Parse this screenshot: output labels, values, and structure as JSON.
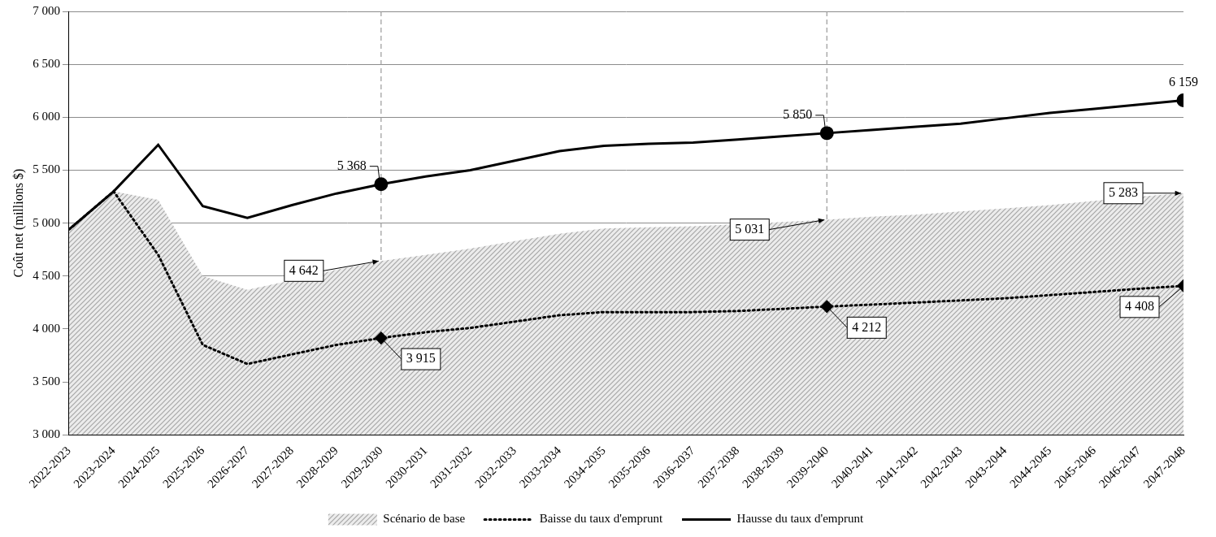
{
  "chart_data": {
    "type": "line",
    "y_label": "Coût net (millions $)",
    "categories": [
      "2022-2023",
      "2023-2024",
      "2024-2025",
      "2025-2026",
      "2026-2027",
      "2027-2028",
      "2028-2029",
      "2029-2030",
      "2030-2031",
      "2031-2032",
      "2032-2033",
      "2033-2034",
      "2034-2035",
      "2035-2036",
      "2036-2037",
      "2037-2038",
      "2038-2039",
      "2039-2040",
      "2040-2041",
      "2041-2042",
      "2042-2043",
      "2043-2044",
      "2044-2045",
      "2045-2046",
      "2046-2047",
      "2047-2048"
    ],
    "series": [
      {
        "name": "Scénario de base",
        "type": "area",
        "color": "#a6a6a6",
        "values": [
          4940,
          5300,
          5220,
          4500,
          4370,
          4460,
          4560,
          4642,
          4700,
          4760,
          4830,
          4900,
          4950,
          4960,
          4970,
          4990,
          5010,
          5031,
          5060,
          5080,
          5110,
          5140,
          5170,
          5210,
          5250,
          5283
        ]
      },
      {
        "name": "Baisse du taux d'emprunt",
        "type": "line",
        "color": "#000000",
        "line_style": "dotted",
        "marker": "diamond",
        "values": [
          4940,
          5300,
          4700,
          3850,
          3670,
          3760,
          3850,
          3915,
          3970,
          4010,
          4070,
          4130,
          4160,
          4160,
          4160,
          4170,
          4190,
          4212,
          4230,
          4250,
          4270,
          4290,
          4320,
          4350,
          4380,
          4408
        ]
      },
      {
        "name": "Hausse du taux d'emprunt",
        "type": "line",
        "color": "#000000",
        "line_style": "solid",
        "marker": "circle",
        "values": [
          4940,
          5300,
          5740,
          5160,
          5050,
          5170,
          5280,
          5368,
          5440,
          5500,
          5590,
          5680,
          5730,
          5750,
          5760,
          5790,
          5820,
          5850,
          5880,
          5910,
          5940,
          5990,
          6040,
          6080,
          6120,
          6159
        ]
      }
    ],
    "annotations": [
      {
        "series": "Hausse du taux d'emprunt",
        "category": "2029-2030",
        "value": 5368,
        "label": "5 368"
      },
      {
        "series": "Hausse du taux d'emprunt",
        "category": "2039-2040",
        "value": 5850,
        "label": "5 850"
      },
      {
        "series": "Hausse du taux d'emprunt",
        "category": "2047-2048",
        "value": 6159,
        "label": "6 159"
      },
      {
        "series": "Scénario de base",
        "category": "2029-2030",
        "value": 4642,
        "label": "4 642"
      },
      {
        "series": "Scénario de base",
        "category": "2039-2040",
        "value": 5031,
        "label": "5 031"
      },
      {
        "series": "Scénario de base",
        "category": "2047-2048",
        "value": 5283,
        "label": "5 283"
      },
      {
        "series": "Baisse du taux d'emprunt",
        "category": "2029-2030",
        "value": 3915,
        "label": "3 915"
      },
      {
        "series": "Baisse du taux d'emprunt",
        "category": "2039-2040",
        "value": 4212,
        "label": "4 212"
      },
      {
        "series": "Baisse du taux d'emprunt",
        "category": "2047-2048",
        "value": 4408,
        "label": "4 408"
      }
    ],
    "reference_lines": [
      "2029-2030",
      "2039-2040"
    ],
    "ylim": [
      3000,
      7000
    ],
    "yticks": [
      {
        "value": 3000,
        "label": "3 000"
      },
      {
        "value": 3500,
        "label": "3 500"
      },
      {
        "value": 4000,
        "label": "4 000"
      },
      {
        "value": 4500,
        "label": "4 500"
      },
      {
        "value": 5000,
        "label": "5 000"
      },
      {
        "value": 5500,
        "label": "5 500"
      },
      {
        "value": 6000,
        "label": "6 000"
      },
      {
        "value": 6500,
        "label": "6 500"
      },
      {
        "value": 7000,
        "label": "7 000"
      }
    ],
    "grid": true,
    "legend": "bottom"
  }
}
